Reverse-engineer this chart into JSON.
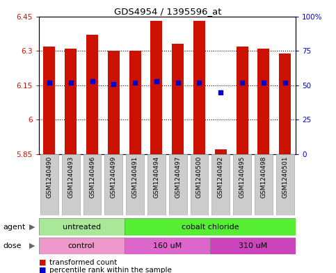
{
  "title": "GDS4954 / 1395596_at",
  "samples": [
    "GSM1240490",
    "GSM1240493",
    "GSM1240496",
    "GSM1240499",
    "GSM1240491",
    "GSM1240494",
    "GSM1240497",
    "GSM1240500",
    "GSM1240492",
    "GSM1240495",
    "GSM1240498",
    "GSM1240501"
  ],
  "bar_values": [
    6.32,
    6.31,
    6.37,
    6.3,
    6.3,
    6.43,
    6.33,
    6.43,
    5.87,
    6.32,
    6.31,
    6.29
  ],
  "bar_base": 5.85,
  "percentile_values": [
    52,
    52,
    53,
    51,
    52,
    53,
    52,
    52,
    45,
    52,
    52,
    52
  ],
  "ylim_left": [
    5.85,
    6.45
  ],
  "ylim_right": [
    0,
    100
  ],
  "yticks_left": [
    5.85,
    6.0,
    6.15,
    6.3,
    6.45
  ],
  "yticks_right": [
    0,
    25,
    50,
    75,
    100
  ],
  "ytick_labels_left": [
    "5.85",
    "6",
    "6.15",
    "6.3",
    "6.45"
  ],
  "ytick_labels_right": [
    "0",
    "25",
    "50",
    "75",
    "100%"
  ],
  "hlines": [
    6.0,
    6.15,
    6.3
  ],
  "bar_color": "#cc1100",
  "percentile_color": "#0000cc",
  "background_color": "#ffffff",
  "plot_bg_color": "#ffffff",
  "agent_groups": [
    {
      "label": "untreated",
      "start": 0,
      "end": 4,
      "color": "#aae899"
    },
    {
      "label": "cobalt chloride",
      "start": 4,
      "end": 12,
      "color": "#55ee33"
    }
  ],
  "dose_groups": [
    {
      "label": "control",
      "start": 0,
      "end": 4,
      "color": "#ee99cc"
    },
    {
      "label": "160 uM",
      "start": 4,
      "end": 8,
      "color": "#dd66cc"
    },
    {
      "label": "310 uM",
      "start": 8,
      "end": 12,
      "color": "#cc44bb"
    }
  ],
  "legend_items": [
    {
      "label": "transformed count",
      "color": "#cc1100"
    },
    {
      "label": "percentile rank within the sample",
      "color": "#0000cc"
    }
  ],
  "tick_label_color_left": "#cc1100",
  "tick_label_color_right": "#0000cc",
  "grid_color": "#000000",
  "bar_width": 0.55,
  "sample_box_color": "#cccccc",
  "sample_box_edge_color": "#aaaaaa"
}
